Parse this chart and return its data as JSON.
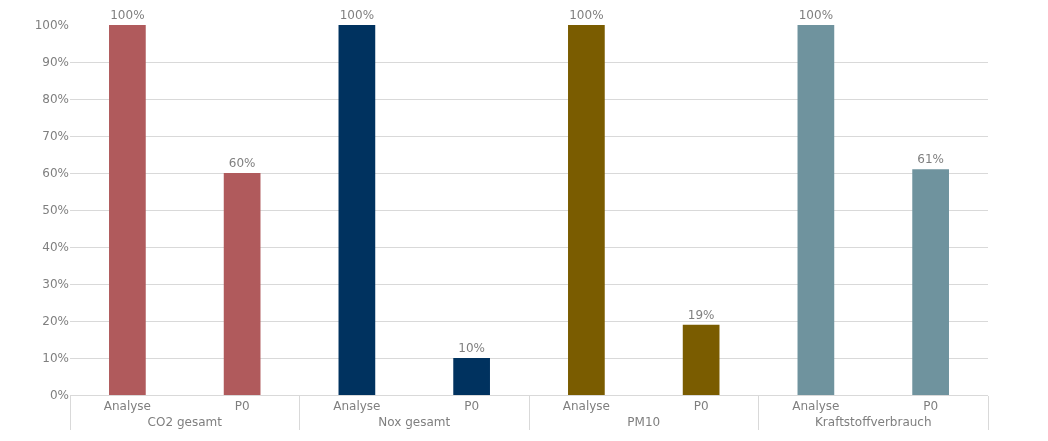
{
  "chart_data": {
    "type": "bar",
    "categories": [
      "Analyse",
      "P0",
      "Analyse",
      "P0",
      "Analyse",
      "P0",
      "Analyse",
      "P0"
    ],
    "values": [
      100,
      60,
      100,
      10,
      100,
      19,
      100,
      61
    ],
    "colors": [
      "#b05a5c",
      "#b05a5c",
      "#00325f",
      "#00325f",
      "#7a5c00",
      "#7a5c00",
      "#6f939e",
      "#6f939e"
    ],
    "value_labels": [
      "100%",
      "60%",
      "100%",
      "10%",
      "100%",
      "19%",
      "100%",
      "61%"
    ],
    "annotations": [
      "CO2 gesamt",
      "Nox gesamt",
      "PM10",
      "Kraftstoffverbrauch"
    ],
    "ylim": [
      0,
      100
    ],
    "yticks": [
      {
        "value": 0,
        "label": "0%"
      },
      {
        "value": 10,
        "label": "10%"
      },
      {
        "value": 20,
        "label": "20%"
      },
      {
        "value": 30,
        "label": "30%"
      },
      {
        "value": 40,
        "label": "40%"
      },
      {
        "value": 50,
        "label": "50%"
      },
      {
        "value": 60,
        "label": "60%"
      },
      {
        "value": 70,
        "label": "70%"
      },
      {
        "value": 80,
        "label": "80%"
      },
      {
        "value": 90,
        "label": "90%"
      },
      {
        "value": 100,
        "label": "100%"
      }
    ],
    "grid": "y",
    "legend": false
  }
}
